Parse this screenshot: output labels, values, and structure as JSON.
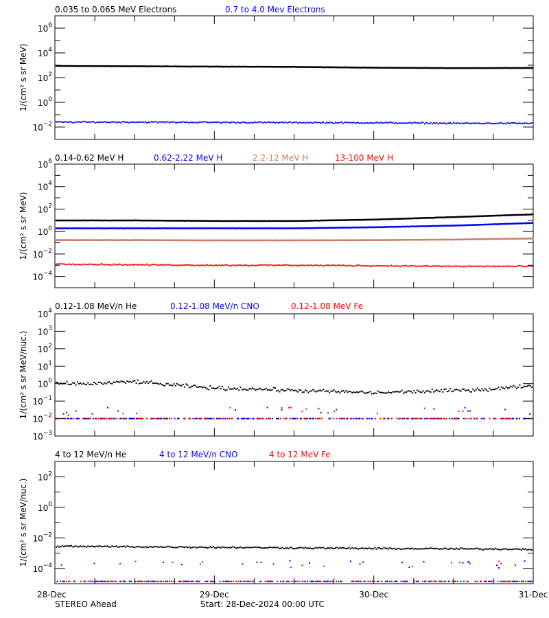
{
  "footer": {
    "spacecraft": "STEREO Ahead",
    "start": "Start: 28-Dec-2024 00:00 UTC"
  },
  "colors": {
    "black": "#000000",
    "blue": "#0000ff",
    "brown": "#c87f64",
    "red": "#ff0000"
  },
  "chart_data": [
    {
      "type": "scatter",
      "ylabel": "1/(cm² s sr MeV)",
      "yscale": "log",
      "ylim": [
        0.001,
        10000000
      ],
      "ytick_exponents": [
        6,
        4,
        2,
        0,
        -2
      ],
      "xlim": [
        "2024-12-28T00:00",
        "2024-12-31T00:00"
      ],
      "xtick_labels": [
        "28-Dec",
        "29-Dec",
        "30-Dec",
        "31-Dec"
      ],
      "x": [
        "2024-12-28T00:00",
        "2024-12-28T12:00",
        "2024-12-29T00:00",
        "2024-12-29T12:00",
        "2024-12-30T00:00",
        "2024-12-30T12:00",
        "2024-12-31T00:00"
      ],
      "series": [
        {
          "name": "0.035 to 0.065 MeV Electrons",
          "color": "#000000",
          "values": [
            900,
            850,
            800,
            760,
            650,
            600,
            620
          ]
        },
        {
          "name": "0.7 to 4.0 Mev Electrons",
          "color": "#0000ff",
          "values": [
            0.025,
            0.025,
            0.024,
            0.023,
            0.022,
            0.02,
            0.02
          ]
        }
      ]
    },
    {
      "type": "scatter",
      "ylabel": "1/(cm² s sr MeV)",
      "yscale": "log",
      "ylim": [
        1e-05,
        1000000
      ],
      "ytick_exponents": [
        6,
        4,
        2,
        0,
        -2,
        -4
      ],
      "xlim": [
        "2024-12-28T00:00",
        "2024-12-31T00:00"
      ],
      "xtick_labels": [
        "28-Dec",
        "29-Dec",
        "30-Dec",
        "31-Dec"
      ],
      "x": [
        "2024-12-28T00:00",
        "2024-12-28T12:00",
        "2024-12-29T00:00",
        "2024-12-29T12:00",
        "2024-12-30T00:00",
        "2024-12-30T12:00",
        "2024-12-31T00:00"
      ],
      "series": [
        {
          "name": "0.14-0.62 MeV H",
          "color": "#000000",
          "values": [
            10,
            10,
            9,
            9,
            12,
            20,
            35
          ]
        },
        {
          "name": "0.62-2.22 MeV H",
          "color": "#0000ff",
          "values": [
            2,
            2,
            2,
            2,
            2.5,
            3.5,
            6
          ]
        },
        {
          "name": "2.2-12 MeV H",
          "color": "#c87f64",
          "values": [
            0.18,
            0.18,
            0.17,
            0.17,
            0.18,
            0.2,
            0.25
          ]
        },
        {
          "name": "13-100 MeV H",
          "color": "#ff0000",
          "values": [
            0.0013,
            0.0011,
            0.001,
            0.001,
            0.0009,
            0.0008,
            0.0008
          ]
        }
      ]
    },
    {
      "type": "scatter",
      "ylabel": "1/(cm² s sr MeV/nuc.)",
      "yscale": "log",
      "ylim": [
        0.001,
        10000
      ],
      "ytick_exponents": [
        4,
        3,
        2,
        1,
        0,
        -1,
        -2,
        -3
      ],
      "xlim": [
        "2024-12-28T00:00",
        "2024-12-31T00:00"
      ],
      "xtick_labels": [
        "28-Dec",
        "29-Dec",
        "30-Dec",
        "31-Dec"
      ],
      "x": [
        "2024-12-28T00:00",
        "2024-12-28T06:00",
        "2024-12-28T12:00",
        "2024-12-28T18:00",
        "2024-12-29T00:00",
        "2024-12-29T06:00",
        "2024-12-29T12:00",
        "2024-12-29T18:00",
        "2024-12-30T00:00",
        "2024-12-30T06:00",
        "2024-12-30T12:00",
        "2024-12-30T18:00",
        "2024-12-31T00:00"
      ],
      "series": [
        {
          "name": "0.12-1.08 MeV/n He",
          "color": "#000000",
          "values": [
            1,
            1,
            1.3,
            0.8,
            0.55,
            0.5,
            0.4,
            0.35,
            0.3,
            0.35,
            0.4,
            0.5,
            0.8
          ]
        },
        {
          "name": "0.12-1.08 MeV/n CNO",
          "color": "#0000ff",
          "values": [
            0.01,
            0.01,
            0.01,
            0.01,
            0.01,
            0.01,
            0.01,
            0.01,
            0.01,
            0.01,
            0.01,
            0.01,
            0.01
          ]
        },
        {
          "name": "0.12-1.08 MeV Fe",
          "color": "#ff0000",
          "values": [
            0.01,
            0.01,
            0.01,
            0.01,
            0.01,
            0.01,
            0.01,
            0.01,
            0.01,
            0.01,
            0.01,
            0.01,
            0.01
          ]
        }
      ]
    },
    {
      "type": "scatter",
      "ylabel": "1/(cm² s sr MeV/nuc.)",
      "yscale": "log",
      "ylim": [
        1e-05,
        1000
      ],
      "ytick_exponents": [
        2,
        0,
        -2,
        -4
      ],
      "xlim": [
        "2024-12-28T00:00",
        "2024-12-31T00:00"
      ],
      "xtick_labels": [
        "28-Dec",
        "29-Dec",
        "30-Dec",
        "31-Dec"
      ],
      "x": [
        "2024-12-28T00:00",
        "2024-12-28T12:00",
        "2024-12-29T00:00",
        "2024-12-29T12:00",
        "2024-12-30T00:00",
        "2024-12-30T12:00",
        "2024-12-31T00:00"
      ],
      "series": [
        {
          "name": "4 to 12 MeV/n He",
          "color": "#000000",
          "values": [
            0.0028,
            0.0026,
            0.0024,
            0.0022,
            0.002,
            0.0019,
            0.0018
          ]
        },
        {
          "name": "4 to 12 MeV/n CNO",
          "color": "#0000ff",
          "values": [
            1.4e-05,
            1.4e-05,
            1.4e-05,
            1.4e-05,
            1.4e-05,
            1.4e-05,
            1.4e-05
          ]
        },
        {
          "name": "4 to 12 MeV Fe",
          "color": "#ff0000",
          "values": [
            1.4e-05,
            1.4e-05,
            1.4e-05,
            1.4e-05,
            1.4e-05,
            1.4e-05,
            1.4e-05
          ]
        }
      ]
    }
  ]
}
